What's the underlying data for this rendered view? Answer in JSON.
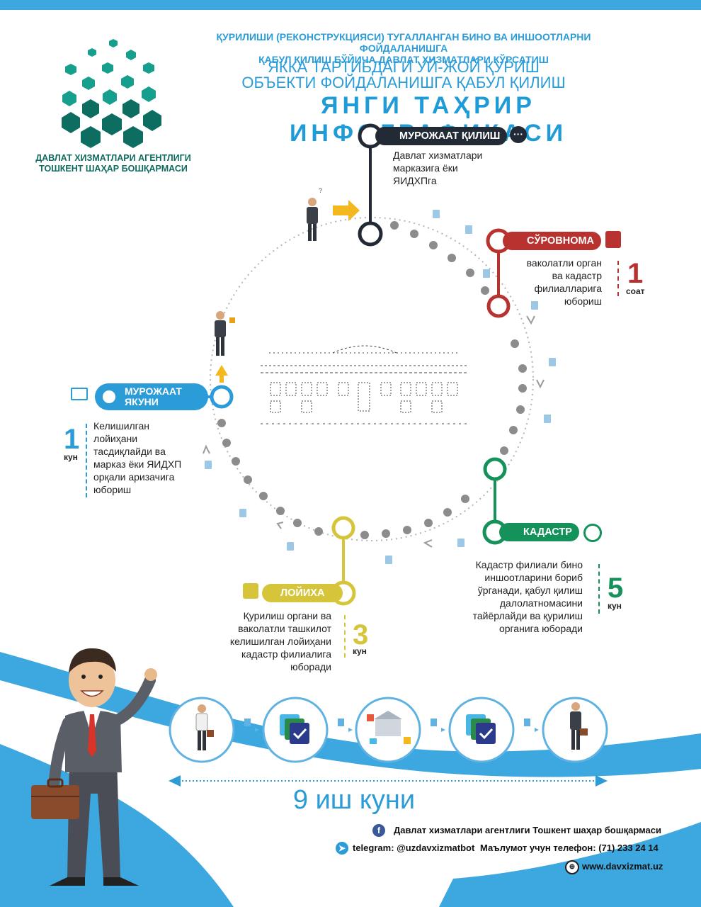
{
  "colors": {
    "brand_blue": "#2b9cd8",
    "dark": "#222a35",
    "red": "#b8322f",
    "green": "#14925a",
    "yellow": "#d6c53a",
    "teal": "#0f7c6b"
  },
  "logo": {
    "line1": "ДАВЛАТ ХИЗМАТЛАРИ АГЕНТЛИГИ",
    "line2": "ТОШКЕНТ ШАҲАР БОШҚАРМАСИ"
  },
  "header": {
    "subtitle_line1": "ҚУРИЛИШИ (РЕКОНСТРУКЦИЯСИ) ТУГАЛЛАНГАН БИНО ВА ИНШООТЛАРНИ ФОЙДАЛАНИШГА",
    "subtitle_line2": "ҚАБУЛ ҚИЛИШ БЎЙИЧА ДАВЛАТ ХИЗМАТЛАРИ КЎРСАТИШ",
    "title_line1": "ЯККА ТАРТИБДАГИ УЙ-ЖОЙ ҚУРИШ",
    "title_line2": "ОБЪЕКТИ ФОЙДАЛАНИШГА ҚАБУЛ ҚИЛИШ",
    "headline": "ЯНГИ ТАҲРИР ИНФОГРАФИКАСИ"
  },
  "steps": {
    "apply": {
      "label": "МУРОЖААТ ҚИЛИШ",
      "desc": [
        "Давлат хизматлари",
        "марказига ёки",
        "ЯИДХПга"
      ],
      "icon": "chat-bubble-icon"
    },
    "survey": {
      "label": "СЎРОВНОМА",
      "desc": [
        "ваколатли орган",
        "ва кадастр",
        "филиалларига",
        "юбориш"
      ],
      "num": "1",
      "unit": "соат",
      "icon": "clipboard-check-icon"
    },
    "cadastre": {
      "label": "КАДАСТР",
      "desc": [
        "Кадастр филиали бино",
        "иншоотларини бориб",
        "ўрганади, қабул қилиш",
        "далолатномасини",
        "тайёрлайди ва қурилиш",
        "органига юборади"
      ],
      "num": "5",
      "unit": "кун",
      "icon": "compass-icon"
    },
    "project": {
      "label": "ЛОЙИХА",
      "desc": [
        "Қурилиш органи ва",
        "ваколатли ташкилот",
        "келишилган лойиҳани",
        "кадастр филиалига",
        "юборади"
      ],
      "num": "3",
      "unit": "кун",
      "icon": "presentation-board-icon"
    },
    "finish": {
      "label_line1": "МУРОЖААТ",
      "label_line2": "ЯКУНИ",
      "desc": [
        "Келишилган",
        "лойиҳани",
        "тасдиқлайди ва",
        "марказ ёки ЯИДХП",
        "орқали аризачига",
        "юбориш"
      ],
      "num": "1",
      "unit": "кун",
      "icon": "laptop-check-icon"
    }
  },
  "timeline": {
    "icons": [
      "person-with-document-icon",
      "approved-documents-icon",
      "building-process-icon",
      "approved-documents-icon",
      "person-with-briefcase-icon"
    ],
    "total": "9 иш куни"
  },
  "footer": {
    "facebook": "Давлат хизматлари агентлиги Тошкент шаҳар бошқармаси",
    "telegram": "telegram: @uzdavxizmatbot",
    "phone": "Маълумот учун телефон: (71) 233 24 14",
    "website": "www.davxizmat.uz"
  }
}
